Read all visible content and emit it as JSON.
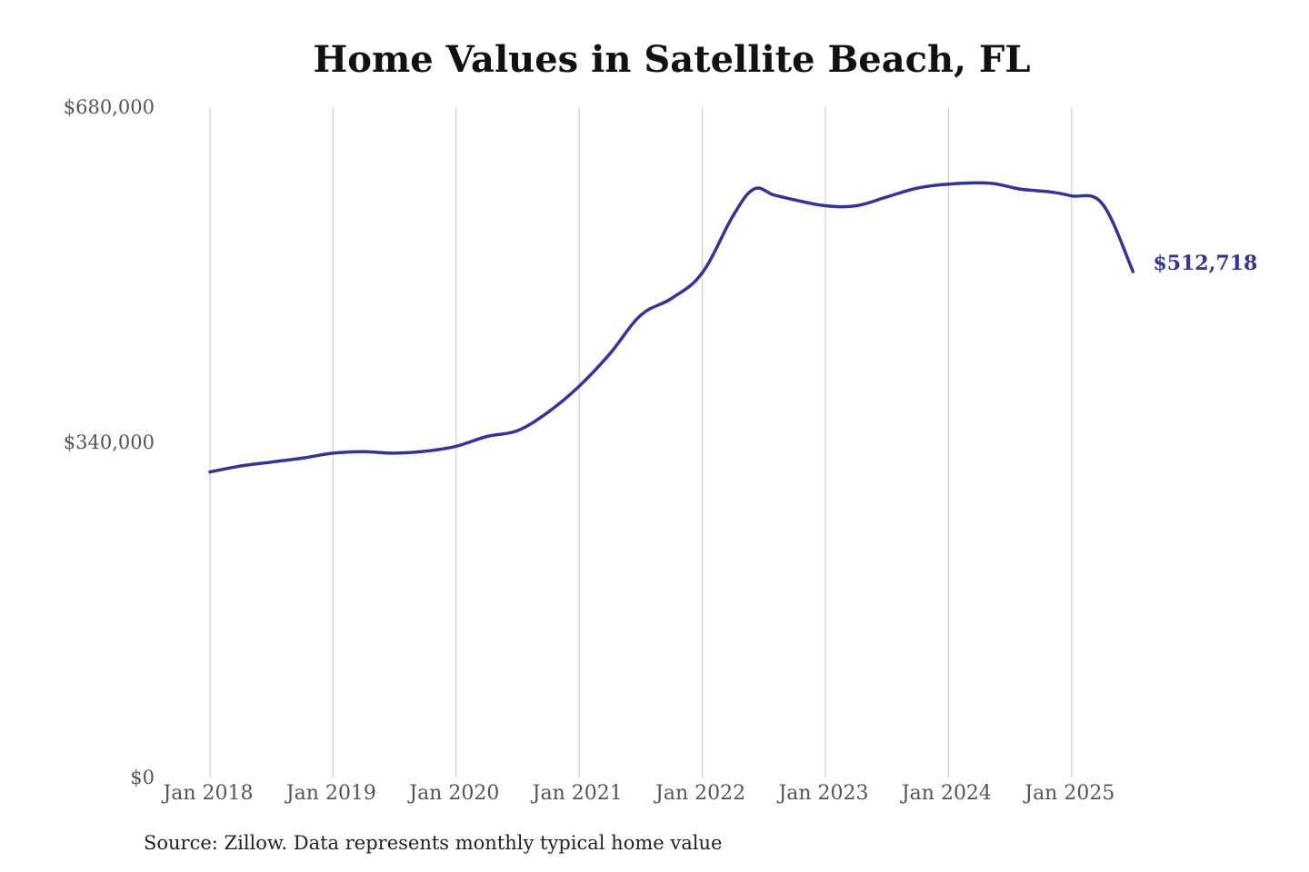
{
  "chart_data": {
    "type": "line",
    "title": "Home Values in Satellite Beach, FL",
    "xlabel": "",
    "ylabel": "",
    "ylim": [
      0,
      680000
    ],
    "y_ticks": [
      {
        "value": 0,
        "label": "$0"
      },
      {
        "value": 340000,
        "label": "$340,000"
      },
      {
        "value": 680000,
        "label": "$680,000"
      }
    ],
    "x_ticks": [
      {
        "value": 2018.0,
        "label": "Jan 2018"
      },
      {
        "value": 2019.0,
        "label": "Jan 2019"
      },
      {
        "value": 2020.0,
        "label": "Jan 2020"
      },
      {
        "value": 2021.0,
        "label": "Jan 2021"
      },
      {
        "value": 2022.0,
        "label": "Jan 2022"
      },
      {
        "value": 2023.0,
        "label": "Jan 2023"
      },
      {
        "value": 2024.0,
        "label": "Jan 2024"
      },
      {
        "value": 2025.0,
        "label": "Jan 2025"
      }
    ],
    "xlim": [
      2018.0,
      2025.5
    ],
    "grid": "vertical",
    "legend": "none",
    "series": [
      {
        "color": "#35339a",
        "end_label": "$512,718",
        "x": [
          2018.0,
          2018.25,
          2018.5,
          2018.75,
          2019.0,
          2019.25,
          2019.5,
          2019.75,
          2020.0,
          2020.25,
          2020.5,
          2020.75,
          2021.0,
          2021.25,
          2021.5,
          2021.75,
          2022.0,
          2022.25,
          2022.42,
          2022.58,
          2022.75,
          2023.0,
          2023.25,
          2023.5,
          2023.75,
          2024.0,
          2024.33,
          2024.58,
          2024.83,
          2025.0,
          2025.25,
          2025.5
        ],
        "y": [
          310000,
          316000,
          320000,
          324000,
          329000,
          330500,
          329000,
          331000,
          336000,
          346000,
          352000,
          371000,
          397000,
          430000,
          469000,
          486000,
          512000,
          570000,
          597000,
          591000,
          586000,
          580000,
          580000,
          589000,
          598000,
          602000,
          603000,
          597000,
          594000,
          590000,
          582000,
          513000
        ]
      }
    ]
  },
  "source_note": "Source: Zillow. Data represents monthly typical home value"
}
